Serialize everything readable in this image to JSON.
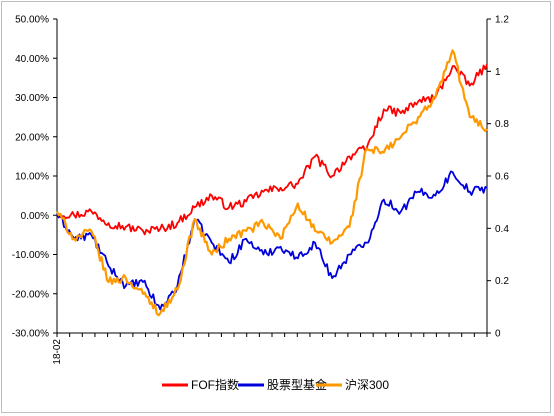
{
  "chart_data": {
    "type": "line",
    "title": "",
    "xlabel": "",
    "ylabel_left": "",
    "ylabel_right": "",
    "x_tick_labels": [
      "18-02"
    ],
    "left_axis": {
      "ylim": [
        -0.3,
        0.5
      ],
      "ticks": [
        -0.3,
        -0.2,
        -0.1,
        0.0,
        0.1,
        0.2,
        0.3,
        0.4,
        0.5
      ],
      "tick_labels": [
        "-30.00%",
        "-20.00%",
        "-10.00%",
        "0.00%",
        "10.00%",
        "20.00%",
        "30.00%",
        "40.00%",
        "50.00%"
      ]
    },
    "right_axis": {
      "ylim": [
        0,
        1.2
      ],
      "ticks": [
        0,
        0.2,
        0.4,
        0.6,
        0.8,
        1.0,
        1.2
      ],
      "tick_labels": [
        "0",
        "0.2",
        "0.4",
        "0.6",
        "0.8",
        "1",
        "1.2"
      ]
    },
    "grid": false,
    "legend_position": "bottom",
    "x": [
      0,
      4,
      8,
      12,
      16,
      20,
      24,
      28,
      32,
      36,
      40,
      44,
      48,
      52,
      56,
      60,
      64,
      68,
      72,
      76,
      80,
      84,
      88,
      92,
      96,
      100
    ],
    "series": [
      {
        "name": "FOF指数",
        "axis": "left",
        "color": "#ff0000",
        "values": [
          0.005,
          0.0,
          0.01,
          -0.02,
          -0.03,
          -0.04,
          -0.035,
          -0.02,
          0.02,
          0.05,
          0.02,
          0.035,
          0.06,
          0.07,
          0.08,
          0.15,
          0.1,
          0.15,
          0.17,
          0.27,
          0.26,
          0.29,
          0.3,
          0.38,
          0.33,
          0.385
        ]
      },
      {
        "name": "股票型基金",
        "axis": "left",
        "color": "#0000dd",
        "values": [
          0.005,
          -0.06,
          -0.05,
          -0.13,
          -0.18,
          -0.17,
          -0.24,
          -0.18,
          -0.01,
          -0.07,
          -0.12,
          -0.06,
          -0.1,
          -0.08,
          -0.11,
          -0.07,
          -0.16,
          -0.1,
          -0.07,
          0.04,
          0.01,
          0.06,
          0.05,
          0.11,
          0.06,
          0.07
        ]
      },
      {
        "name": "沪深300",
        "axis": "left",
        "color": "#ff9900",
        "values": [
          0.01,
          -0.06,
          -0.04,
          -0.17,
          -0.16,
          -0.2,
          -0.25,
          -0.19,
          -0.01,
          -0.1,
          -0.06,
          -0.04,
          -0.02,
          -0.06,
          0.03,
          -0.04,
          -0.07,
          -0.03,
          0.17,
          0.16,
          0.2,
          0.25,
          0.3,
          0.42,
          0.25,
          0.22
        ]
      }
    ]
  }
}
